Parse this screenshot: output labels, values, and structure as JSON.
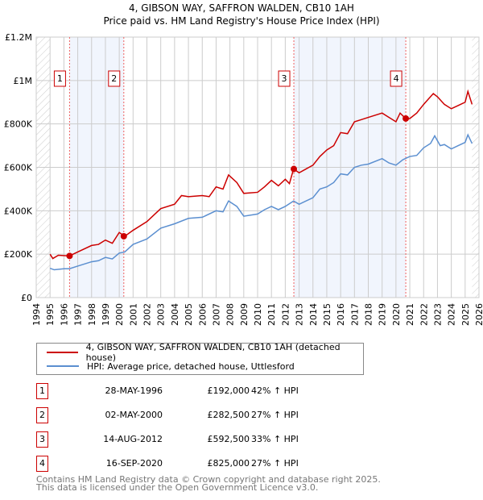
{
  "chart_data": {
    "type": "line",
    "title": "4, GIBSON WAY, SAFFRON WALDEN, CB10 1AH",
    "subtitle": "Price paid vs. HM Land Registry's House Price Index (HPI)",
    "xlim": [
      1994,
      2026
    ],
    "ylim": [
      0,
      1200000
    ],
    "yticks": [
      {
        "v": 0,
        "label": "£0"
      },
      {
        "v": 200000,
        "label": "£200K"
      },
      {
        "v": 400000,
        "label": "£400K"
      },
      {
        "v": 600000,
        "label": "£600K"
      },
      {
        "v": 800000,
        "label": "£800K"
      },
      {
        "v": 1000000,
        "label": "£1M"
      },
      {
        "v": 1200000,
        "label": "£1.2M"
      }
    ],
    "xticks": [
      "1994",
      "1995",
      "1996",
      "1997",
      "1998",
      "1999",
      "2000",
      "2001",
      "2002",
      "2003",
      "2004",
      "2005",
      "2006",
      "2007",
      "2008",
      "2009",
      "2010",
      "2011",
      "2012",
      "2013",
      "2014",
      "2015",
      "2016",
      "2017",
      "2018",
      "2019",
      "2020",
      "2021",
      "2022",
      "2023",
      "2024",
      "2025",
      "2026"
    ],
    "grid": true,
    "series": [
      {
        "name": "4, GIBSON WAY, SAFFRON WALDEN, CB10 1AH (detached house)",
        "color": "#cc0000",
        "x": [
          1995,
          1995.2,
          1995.6,
          1996.4,
          1997,
          1998,
          1998.5,
          1999,
          1999.5,
          2000,
          2000.4,
          2001,
          2002,
          2002.5,
          2003,
          2004,
          2004.5,
          2005,
          2006,
          2006.5,
          2007,
          2007.5,
          2007.9,
          2008.5,
          2009,
          2010,
          2010.5,
          2011,
          2011.5,
          2012,
          2012.3,
          2012.6,
          2013,
          2014,
          2014.5,
          2015,
          2015.5,
          2016,
          2016.5,
          2017,
          2017.5,
          2018,
          2019,
          2019.5,
          2020,
          2020.3,
          2020.7,
          2021,
          2021.5,
          2022,
          2022.7,
          2023,
          2023.5,
          2024,
          2024.5,
          2025,
          2025.2,
          2025.5
        ],
        "values": [
          200000,
          180000,
          195000,
          192000,
          210000,
          240000,
          245000,
          265000,
          250000,
          300000,
          282500,
          310000,
          350000,
          380000,
          410000,
          430000,
          470000,
          465000,
          470000,
          465000,
          510000,
          500000,
          565000,
          530000,
          480000,
          485000,
          510000,
          540000,
          515000,
          545000,
          525000,
          592500,
          575000,
          610000,
          650000,
          680000,
          700000,
          760000,
          755000,
          810000,
          820000,
          830000,
          850000,
          830000,
          810000,
          850000,
          825000,
          825000,
          850000,
          890000,
          940000,
          925000,
          890000,
          870000,
          885000,
          900000,
          950000,
          890000
        ]
      },
      {
        "name": "HPI: Average price, detached house, Uttlesford",
        "color": "#5b8fd0",
        "x": [
          1995,
          1995.3,
          1996,
          1996.4,
          1997,
          1998,
          1998.5,
          1999,
          1999.5,
          2000,
          2000.4,
          2001,
          2002,
          2003,
          2004,
          2005,
          2006,
          2007,
          2007.5,
          2007.9,
          2008.5,
          2009,
          2010,
          2010.5,
          2011,
          2011.5,
          2012,
          2012.6,
          2013,
          2014,
          2014.5,
          2015,
          2015.5,
          2016,
          2016.5,
          2017,
          2017.5,
          2018,
          2019,
          2019.5,
          2020,
          2020.5,
          2021,
          2021.5,
          2022,
          2022.5,
          2022.8,
          2023.2,
          2023.5,
          2024,
          2024.5,
          2025,
          2025.2,
          2025.5
        ],
        "values": [
          135000,
          128000,
          133000,
          133000,
          145000,
          165000,
          170000,
          185000,
          178000,
          205000,
          210000,
          245000,
          270000,
          320000,
          340000,
          365000,
          370000,
          400000,
          395000,
          445000,
          420000,
          375000,
          385000,
          405000,
          420000,
          405000,
          420000,
          445000,
          430000,
          460000,
          500000,
          510000,
          530000,
          570000,
          565000,
          600000,
          610000,
          615000,
          640000,
          620000,
          610000,
          635000,
          650000,
          655000,
          690000,
          710000,
          745000,
          700000,
          705000,
          685000,
          700000,
          715000,
          750000,
          710000
        ]
      }
    ],
    "sales": [
      {
        "n": "1",
        "x": 1996.41,
        "date": "28-MAY-1996",
        "price": "£192,000",
        "value": 192000,
        "hpi": "42% ↑ HPI"
      },
      {
        "n": "2",
        "x": 2000.33,
        "date": "02-MAY-2000",
        "price": "£282,500",
        "value": 282500,
        "hpi": "27% ↑ HPI"
      },
      {
        "n": "3",
        "x": 2012.62,
        "date": "14-AUG-2012",
        "price": "£592,500",
        "value": 592500,
        "hpi": "33% ↑ HPI"
      },
      {
        "n": "4",
        "x": 2020.71,
        "date": "16-SEP-2020",
        "price": "£825,000",
        "value": 825000,
        "hpi": "27% ↑ HPI"
      }
    ],
    "legend_placement": "bottom"
  },
  "footer": {
    "line1": "Contains HM Land Registry data © Crown copyright and database right 2025.",
    "line2": "This data is licensed under the Open Government Licence v3.0."
  }
}
